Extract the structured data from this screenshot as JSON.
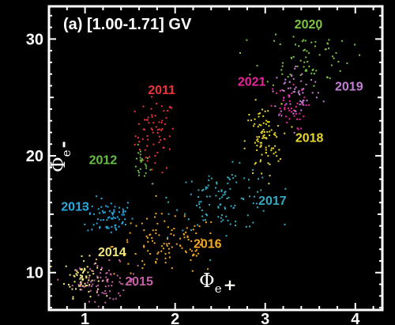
{
  "chart_data": {
    "type": "scatter",
    "title": "(a)  [1.00-1.71] GV",
    "xlabel_symbol": "Φ",
    "xlabel_sub": "e",
    "xlabel_sup": "+",
    "ylabel_symbol": "Φ",
    "ylabel_sub": "e",
    "ylabel_sup": "-",
    "xlim": [
      0.6,
      4.3
    ],
    "ylim": [
      6.8,
      32.8
    ],
    "x_ticks": [
      1,
      2,
      3,
      4
    ],
    "y_ticks": [
      10,
      20,
      30
    ],
    "grid": false,
    "background": "#000000",
    "axis_color": "#ffffff",
    "series": [
      {
        "name": "2011",
        "color": "#e8343a",
        "cx": 1.78,
        "cy": 21.8,
        "sx": 0.11,
        "sy": 1.6,
        "n": 70,
        "label_pos": [
          1.85,
          25.3
        ]
      },
      {
        "name": "2012",
        "color": "#69bd45",
        "cx": 1.62,
        "cy": 19.2,
        "sx": 0.05,
        "sy": 0.7,
        "n": 22,
        "label_pos": [
          1.2,
          19.3
        ]
      },
      {
        "name": "2013",
        "color": "#29a9e0",
        "cx": 1.28,
        "cy": 14.8,
        "sx": 0.13,
        "sy": 0.8,
        "n": 70,
        "label_pos": [
          0.89,
          15.3
        ]
      },
      {
        "name": "2014",
        "color": "#f2e77f",
        "cx": 0.97,
        "cy": 9.6,
        "sx": 0.1,
        "sy": 0.8,
        "n": 75,
        "label_pos": [
          1.3,
          11.4
        ]
      },
      {
        "name": "2015",
        "color": "#c55fa6",
        "cx": 1.22,
        "cy": 9.2,
        "sx": 0.18,
        "sy": 0.8,
        "n": 75,
        "label_pos": [
          1.6,
          8.9
        ]
      },
      {
        "name": "2016",
        "color": "#f0a71e",
        "cx": 1.92,
        "cy": 12.3,
        "sx": 0.3,
        "sy": 1.3,
        "n": 110,
        "label_pos": [
          2.36,
          12.1
        ]
      },
      {
        "name": "2017",
        "color": "#34a9c0",
        "cx": 2.55,
        "cy": 16.3,
        "sx": 0.28,
        "sy": 1.3,
        "n": 110,
        "label_pos": [
          3.08,
          15.8
        ]
      },
      {
        "name": "2018",
        "color": "#e7d62c",
        "cx": 2.98,
        "cy": 21.2,
        "sx": 0.1,
        "sy": 1.6,
        "n": 90,
        "label_pos": [
          3.49,
          21.2
        ]
      },
      {
        "name": "2019",
        "color": "#c67fd8",
        "cx": 3.35,
        "cy": 25.4,
        "sx": 0.14,
        "sy": 1.2,
        "n": 60,
        "label_pos": [
          3.93,
          25.6
        ]
      },
      {
        "name": "2020",
        "color": "#7cc444",
        "cx": 3.45,
        "cy": 28.5,
        "sx": 0.25,
        "sy": 1.3,
        "n": 70,
        "label_pos": [
          3.48,
          30.9
        ]
      },
      {
        "name": "2021",
        "color": "#e8259b",
        "cx": 3.25,
        "cy": 24.0,
        "sx": 0.1,
        "sy": 0.9,
        "n": 40,
        "label_pos": [
          2.85,
          26.0
        ]
      }
    ]
  }
}
